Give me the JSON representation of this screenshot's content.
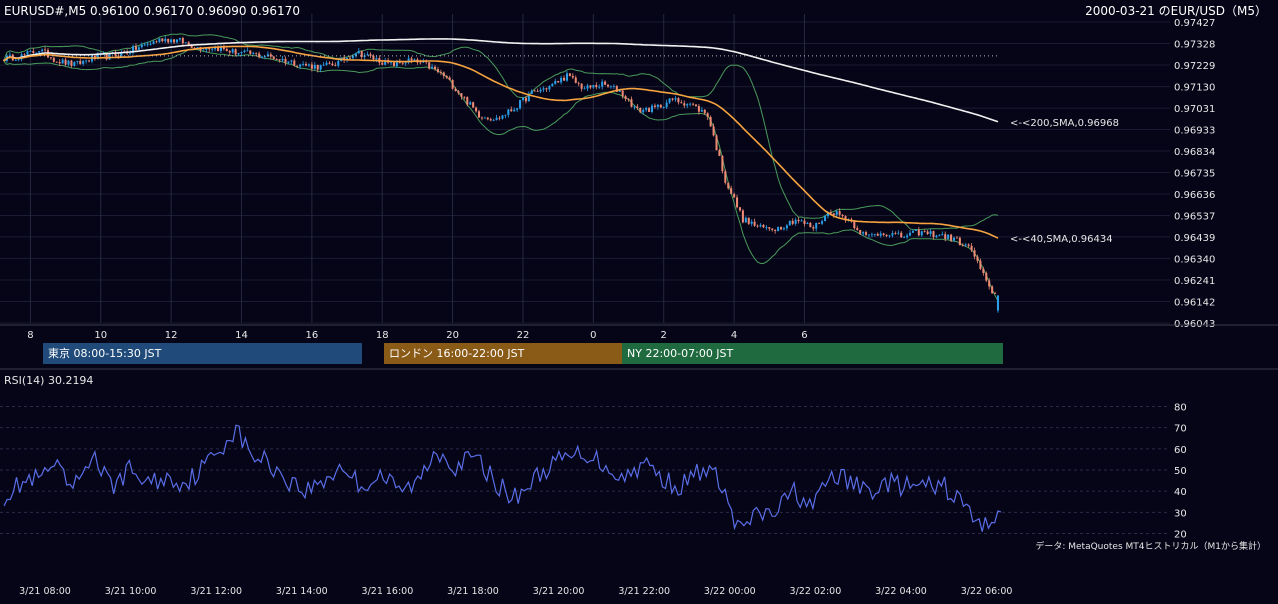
{
  "header": {
    "symbol_info": "EURUSD#,M5 0.96100 0.96170 0.96090 0.96170",
    "chart_title": "2000-03-21 のEUR/USD（M5）"
  },
  "colors": {
    "background": "#050517",
    "candle_up": "#2a9ee8",
    "candle_down": "#ef8a74",
    "sma40": "#f7a340",
    "sma200": "#f2f2f2",
    "bollinger": "#4a9b5c",
    "rsi": "#5a6ee8",
    "tokyo": "#1f4a7a",
    "london": "#8a5a17",
    "ny": "#1f6a3e"
  },
  "sessions": [
    {
      "label": "東京 08:00-15:30 JST",
      "color": "#1f4a7a"
    },
    {
      "label": "ロンドン 16:00-22:00 JST",
      "color": "#8a5a17"
    },
    {
      "label": "NY 22:00-07:00 JST",
      "color": "#1f6a3e"
    }
  ],
  "rsi_panel": {
    "label": "RSI(14) 30.2194",
    "source_note": "データ: MetaQuotes MT4ヒストリカル（M1から集計）"
  },
  "chart_data": [
    {
      "type": "candlestick",
      "title": "2000-03-21 のEUR/USD（M5）",
      "ylim": [
        0.96043,
        0.97427
      ],
      "y_ticks": [
        "0.97427",
        "0.97328",
        "0.97229",
        "0.97130",
        "0.97031",
        "0.96933",
        "0.96834",
        "0.96735",
        "0.96636",
        "0.96537",
        "0.96439",
        "0.96340",
        "0.96241",
        "0.96142",
        "0.96043"
      ],
      "x_ticks": [
        "8",
        "10",
        "12",
        "14",
        "16",
        "18",
        "20",
        "22",
        "0",
        "2",
        "4",
        "6"
      ],
      "overlays": [
        {
          "name": "<-<200,SMA,0.96968",
          "period": 200,
          "last": 0.96968
        },
        {
          "name": "<-<40,SMA,0.96434",
          "period": 40,
          "last": 0.96434
        },
        {
          "name": "Bollinger"
        }
      ],
      "reference_level": 0.97271,
      "keyframes_close": [
        [
          0,
          0.9726
        ],
        [
          6,
          0.9727
        ],
        [
          12,
          0.973
        ],
        [
          18,
          0.9725
        ],
        [
          24,
          0.9723
        ],
        [
          30,
          0.9726
        ],
        [
          36,
          0.9727
        ],
        [
          42,
          0.9729
        ],
        [
          48,
          0.9732
        ],
        [
          54,
          0.9735
        ],
        [
          60,
          0.9734
        ],
        [
          66,
          0.9731
        ],
        [
          72,
          0.9731
        ],
        [
          78,
          0.9729
        ],
        [
          84,
          0.9728
        ],
        [
          90,
          0.9727
        ],
        [
          96,
          0.9725
        ],
        [
          102,
          0.9723
        ],
        [
          108,
          0.9722
        ],
        [
          114,
          0.9724
        ],
        [
          120,
          0.9729
        ],
        [
          126,
          0.9726
        ],
        [
          132,
          0.9723
        ],
        [
          138,
          0.9725
        ],
        [
          144,
          0.9723
        ],
        [
          150,
          0.9718
        ],
        [
          156,
          0.9709
        ],
        [
          162,
          0.97
        ],
        [
          168,
          0.9698
        ],
        [
          174,
          0.9703
        ],
        [
          180,
          0.971
        ],
        [
          186,
          0.9713
        ],
        [
          192,
          0.9718
        ],
        [
          198,
          0.9712
        ],
        [
          204,
          0.9714
        ],
        [
          210,
          0.9711
        ],
        [
          216,
          0.9702
        ],
        [
          222,
          0.9703
        ],
        [
          228,
          0.9707
        ],
        [
          234,
          0.9705
        ],
        [
          240,
          0.97
        ],
        [
          246,
          0.967
        ],
        [
          252,
          0.9652
        ],
        [
          258,
          0.9648
        ],
        [
          264,
          0.9648
        ],
        [
          270,
          0.9652
        ],
        [
          276,
          0.9648
        ],
        [
          282,
          0.9656
        ],
        [
          288,
          0.9652
        ],
        [
          294,
          0.9644
        ],
        [
          300,
          0.9646
        ],
        [
          306,
          0.9644
        ],
        [
          312,
          0.9646
        ],
        [
          318,
          0.9645
        ],
        [
          324,
          0.9643
        ],
        [
          330,
          0.9638
        ],
        [
          336,
          0.962
        ],
        [
          339,
          0.9617
        ]
      ],
      "n_candles": 340,
      "last": {
        "open": 0.961,
        "high": 0.9617,
        "low": 0.9609,
        "close": 0.9617
      }
    },
    {
      "type": "line",
      "name": "RSI(14)",
      "ylim": [
        16,
        84
      ],
      "y_ticks": [
        20,
        30,
        40,
        50,
        60,
        70,
        80
      ],
      "x_ticks": [
        "3/21 08:00",
        "3/21 10:00",
        "3/21 12:00",
        "3/21 14:00",
        "3/21 16:00",
        "3/21 18:00",
        "3/21 20:00",
        "3/21 22:00",
        "3/22 00:00",
        "3/22 02:00",
        "3/22 04:00",
        "3/22 06:00"
      ],
      "keyframes": [
        [
          0,
          38
        ],
        [
          6,
          44
        ],
        [
          12,
          46
        ],
        [
          16,
          52
        ],
        [
          22,
          40
        ],
        [
          28,
          58
        ],
        [
          34,
          42
        ],
        [
          40,
          50
        ],
        [
          46,
          44
        ],
        [
          52,
          46
        ],
        [
          58,
          44
        ],
        [
          64,
          52
        ],
        [
          70,
          62
        ],
        [
          74,
          70
        ],
        [
          78,
          58
        ],
        [
          84,
          54
        ],
        [
          90,
          46
        ],
        [
          96,
          40
        ],
        [
          102,
          45
        ],
        [
          108,
          52
        ],
        [
          114,
          42
        ],
        [
          120,
          48
        ],
        [
          126,
          40
        ],
        [
          132,
          44
        ],
        [
          138,
          60
        ],
        [
          144,
          52
        ],
        [
          150,
          56
        ],
        [
          156,
          46
        ],
        [
          162,
          36
        ],
        [
          168,
          44
        ],
        [
          174,
          52
        ],
        [
          180,
          56
        ],
        [
          186,
          58
        ],
        [
          192,
          52
        ],
        [
          198,
          46
        ],
        [
          204,
          54
        ],
        [
          210,
          46
        ],
        [
          216,
          42
        ],
        [
          222,
          50
        ],
        [
          228,
          46
        ],
        [
          234,
          22
        ],
        [
          240,
          28
        ],
        [
          246,
          30
        ],
        [
          252,
          40
        ],
        [
          258,
          32
        ],
        [
          264,
          48
        ],
        [
          270,
          44
        ],
        [
          276,
          40
        ],
        [
          282,
          44
        ],
        [
          288,
          42
        ],
        [
          294,
          42
        ],
        [
          300,
          42
        ],
        [
          306,
          34
        ],
        [
          312,
          22
        ],
        [
          315,
          28
        ],
        [
          318,
          30
        ]
      ],
      "last": 30.2194
    }
  ]
}
